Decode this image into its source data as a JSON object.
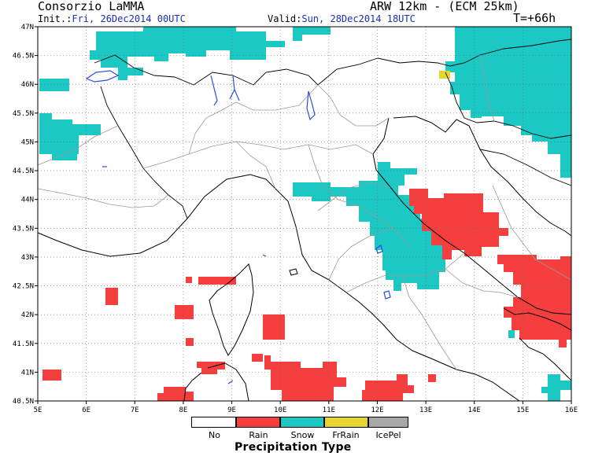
{
  "header": {
    "org": "Consorzio LaMMA",
    "model": "ARW 12km - (ECM 25km)",
    "init_label": "Init.:",
    "init_value": "Fri, 26Dec2014 00UTC",
    "valid_label": "Valid:",
    "valid_value": "Sun, 28Dec2014 18UTC",
    "lead": "T=+66h"
  },
  "axes": {
    "lat_labels": [
      "47N",
      "46.5N",
      "46N",
      "45.5N",
      "45N",
      "44.5N",
      "44N",
      "43.5N",
      "43N",
      "42.5N",
      "42N",
      "41.5N",
      "41N",
      "40.5N"
    ],
    "lon_labels": [
      "5E",
      "6E",
      "7E",
      "8E",
      "9E",
      "10E",
      "11E",
      "12E",
      "13E",
      "14E",
      "15E",
      "16E"
    ]
  },
  "colors": {
    "none": "#ffffff",
    "rain": "#f53e3e",
    "snow": "#1bc8c4",
    "frrain": "#e6d52e",
    "icepel": "#a8a8a8"
  },
  "legend": {
    "title": "Precipitation Type",
    "items": [
      "No",
      "Rain",
      "Snow",
      "FrRain",
      "IcePel"
    ]
  }
}
